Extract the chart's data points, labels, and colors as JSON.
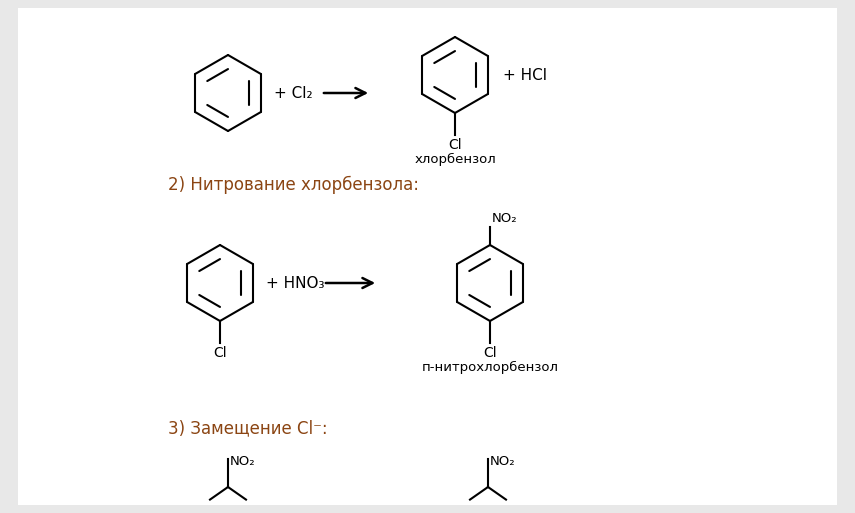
{
  "bg_color": "#e8e8e8",
  "inner_bg": "#ffffff",
  "text_color": "#000000",
  "header_color": "#8B4513",
  "section2_label": "2) Нитрование хлорбензола:",
  "section3_label": "3) Замещение Cl⁻:",
  "chlorobenzene_label": "хлорбензол",
  "p_nitrochlorobenzene_label": "п-нитрохлорбензол",
  "rxn1_plus_cl2": "+ Cl₂",
  "rxn1_plus_hcl": "+ HCl",
  "rxn2_plus_hno3": "+ HNO₃",
  "Cl_label": "Cl",
  "NO2_label": "NO₂",
  "no2_lower": "no₂"
}
